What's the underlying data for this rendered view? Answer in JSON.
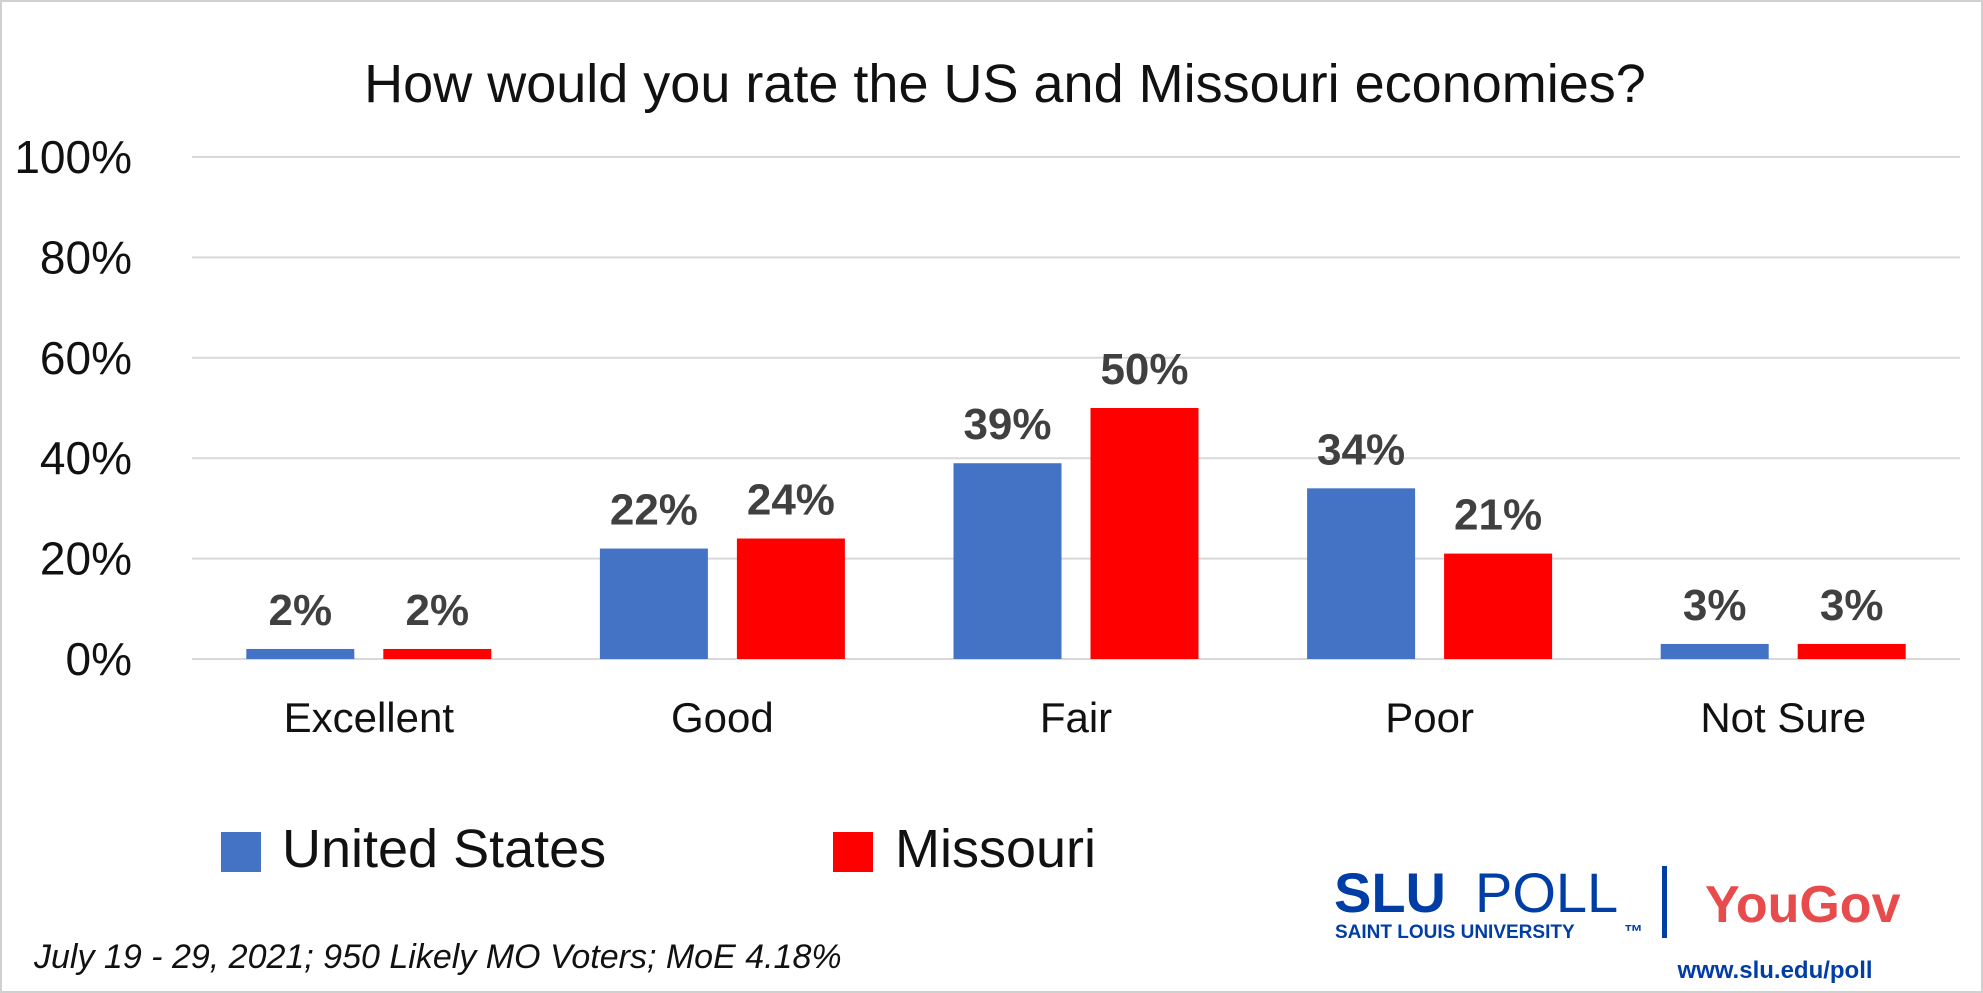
{
  "chart_data": {
    "type": "bar",
    "title": "How would you rate the US and Missouri economies?",
    "categories": [
      "Excellent",
      "Good",
      "Fair",
      "Poor",
      "Not Sure"
    ],
    "series": [
      {
        "name": "United States",
        "color": "#4472C4",
        "values": [
          2,
          22,
          39,
          34,
          3
        ]
      },
      {
        "name": "Missouri",
        "color": "#FF0000",
        "values": [
          2,
          24,
          50,
          21,
          3
        ]
      }
    ],
    "data_labels": [
      [
        "2%",
        "22%",
        "39%",
        "34%",
        "3%"
      ],
      [
        "2%",
        "24%",
        "50%",
        "21%",
        "3%"
      ]
    ],
    "ylim": [
      0,
      100
    ],
    "yticks": [
      0,
      20,
      40,
      60,
      80,
      100
    ],
    "ytick_labels": [
      "0%",
      "20%",
      "40%",
      "60%",
      "80%",
      "100%"
    ],
    "xlabel": "",
    "ylabel": "",
    "grid": true,
    "legend_position": "bottom-left"
  },
  "legend": {
    "us_label": "United States",
    "mo_label": "Missouri"
  },
  "footnote": "July 19 - 29, 2021; 950 Likely MO Voters; MoE 4.18%",
  "branding": {
    "slu": "SLU",
    "poll": "POLL",
    "university": "SAINT LOUIS UNIVERSITY",
    "tm": "™",
    "yougov": "YouGov",
    "url": "www.slu.edu/poll",
    "slu_color": "#003DA5",
    "yougov_color": "#E84B4B"
  }
}
